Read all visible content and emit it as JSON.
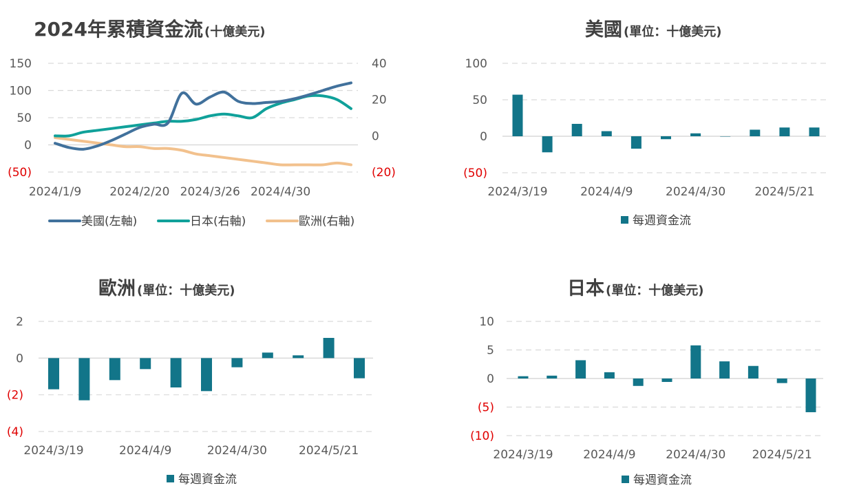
{
  "colors": {
    "us": "#41719c",
    "jp": "#10a19a",
    "eu": "#f2c18d",
    "bar": "#127589",
    "negative_tick": "#e00000"
  },
  "chart_data": [
    {
      "id": "cumulative",
      "type": "line",
      "title": "2024年累積資金流",
      "subtitle": "(十億美元)",
      "y_left": {
        "min": -50,
        "max": 150,
        "ticks": [
          "150",
          "100",
          "50",
          "0",
          "(50)"
        ]
      },
      "y_right": {
        "min": -20,
        "max": 40,
        "ticks": [
          "40",
          "20",
          "0",
          "(20)"
        ]
      },
      "x_ticks": [
        "2024/1/9",
        "2024/2/20",
        "2024/3/26",
        "2024/4/30"
      ],
      "x_tick_index": [
        0,
        6,
        11,
        16
      ],
      "legend_placement": "bottom",
      "n_points": 22,
      "series": [
        {
          "name": "美國(左軸)",
          "axis": "left",
          "color": "#41719c",
          "values": [
            3,
            -5,
            -8,
            -2,
            8,
            20,
            32,
            38,
            40,
            95,
            75,
            88,
            97,
            80,
            76,
            78,
            80,
            85,
            92,
            100,
            108,
            114
          ]
        },
        {
          "name": "日本(右軸)",
          "axis": "right",
          "color": "#10a19a",
          "values": [
            0,
            0,
            2,
            3,
            4,
            5,
            6,
            7,
            8,
            8,
            9,
            11,
            12,
            11,
            10,
            15,
            18,
            20,
            22,
            22,
            20,
            15
          ]
        },
        {
          "name": "歐洲(右軸)",
          "axis": "right",
          "color": "#f2c18d",
          "values": [
            -1,
            -2,
            -3,
            -4,
            -5,
            -6,
            -6,
            -7,
            -7,
            -8,
            -10,
            -11,
            -12,
            -13,
            -14,
            -15,
            -16,
            -16,
            -16,
            -16,
            -15,
            -16
          ]
        }
      ]
    },
    {
      "id": "us",
      "type": "bar",
      "title": "美國",
      "subtitle": "(單位：十億美元)",
      "ylim": [
        -50,
        100
      ],
      "y_ticks": [
        "100",
        "50",
        "0",
        "(50)"
      ],
      "x_ticks": [
        "2024/3/19",
        "2024/4/9",
        "2024/4/30",
        "2024/5/21"
      ],
      "x_tick_index": [
        0,
        3,
        6,
        9
      ],
      "legend": "每週資金流",
      "values": [
        57,
        -22,
        17,
        7,
        -17,
        -4,
        4,
        0,
        9,
        12,
        12
      ]
    },
    {
      "id": "eu",
      "type": "bar",
      "title": "歐洲",
      "subtitle": "(單位：十億美元)",
      "ylim": [
        -4,
        2
      ],
      "y_ticks": [
        "2",
        "0",
        "(2)",
        "(4)"
      ],
      "x_ticks": [
        "2024/3/19",
        "2024/4/9",
        "2024/4/30",
        "2024/5/21"
      ],
      "x_tick_index": [
        0,
        3,
        6,
        9
      ],
      "legend": "每週資金流",
      "values": [
        -1.7,
        -2.3,
        -1.2,
        -0.6,
        -1.6,
        -1.8,
        -0.5,
        0.3,
        0.15,
        1.1,
        -1.1
      ]
    },
    {
      "id": "jp",
      "type": "bar",
      "title": "日本",
      "subtitle": "(單位：十億美元)",
      "ylim": [
        -10,
        10
      ],
      "y_ticks": [
        "10",
        "5",
        "0",
        "(5)",
        "(10)"
      ],
      "x_ticks": [
        "2024/3/19",
        "2024/4/9",
        "2024/4/30",
        "2024/5/21"
      ],
      "x_tick_index": [
        0,
        3,
        6,
        9
      ],
      "legend": "每週資金流",
      "values": [
        0.4,
        0.5,
        3.2,
        1.1,
        -1.3,
        -0.6,
        5.8,
        3.0,
        2.2,
        -0.8,
        -5.9
      ]
    }
  ]
}
